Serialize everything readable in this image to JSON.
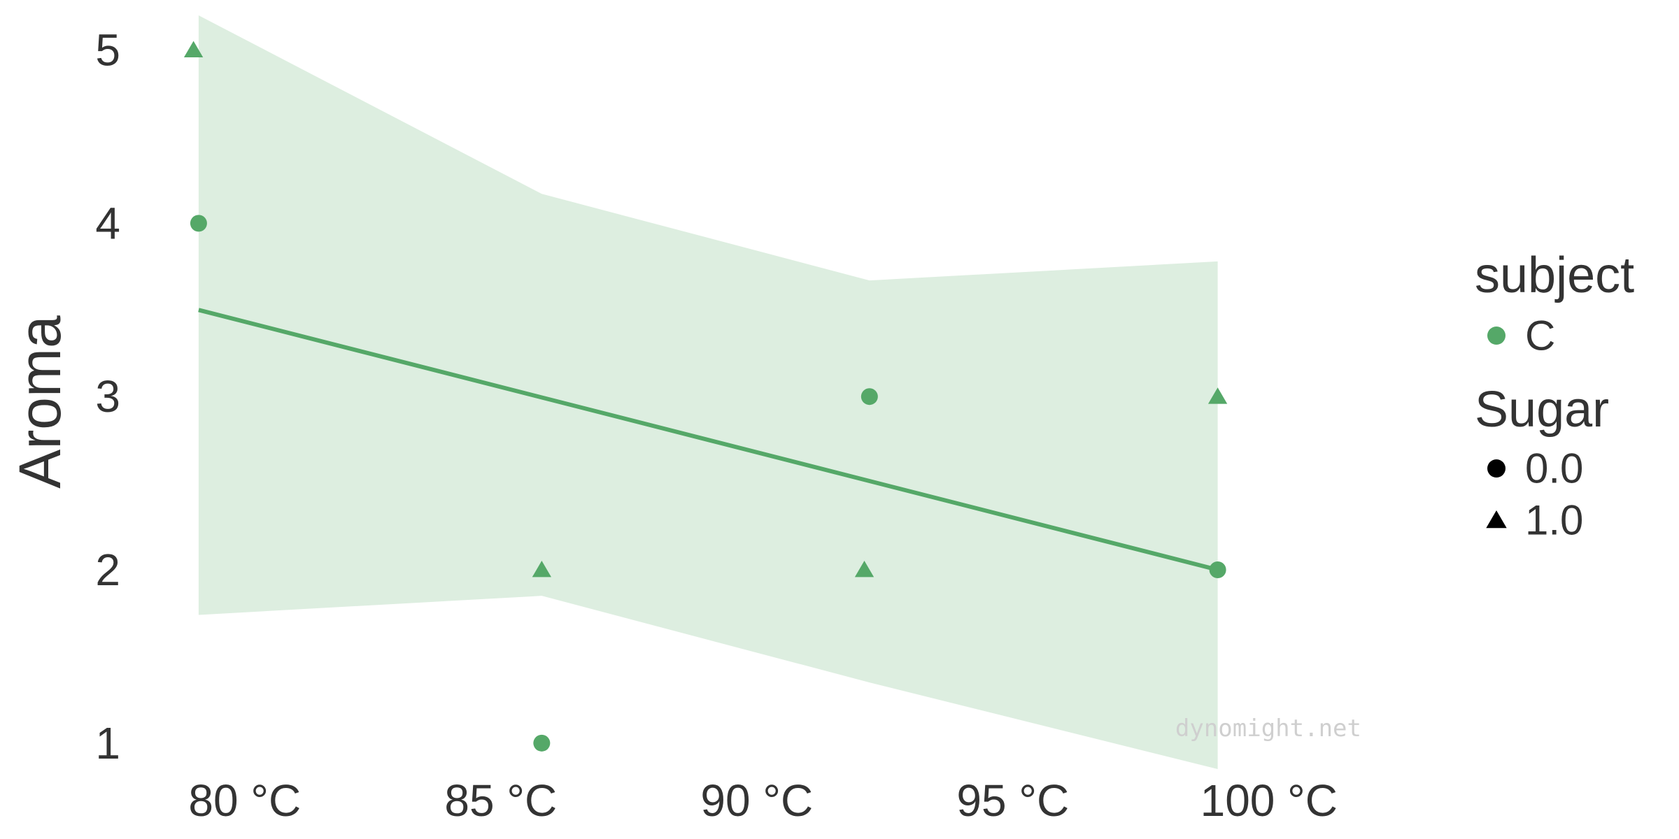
{
  "chart_data": {
    "type": "scatter",
    "title": "",
    "xlabel": "",
    "ylabel": "Aroma",
    "x_ticks": [
      {
        "value": 80,
        "label": "80 °C"
      },
      {
        "value": 85,
        "label": "85 °C"
      },
      {
        "value": 90,
        "label": "90 °C"
      },
      {
        "value": 95,
        "label": "95 °C"
      },
      {
        "value": 100,
        "label": "100 °C"
      }
    ],
    "y_ticks": [
      {
        "value": 1,
        "label": "1"
      },
      {
        "value": 2,
        "label": "2"
      },
      {
        "value": 3,
        "label": "3"
      },
      {
        "value": 4,
        "label": "4"
      },
      {
        "value": 5,
        "label": "5"
      }
    ],
    "xlim": [
      78.5,
      103.5
    ],
    "ylim": [
      0.85,
      5.2
    ],
    "grid": false,
    "points": [
      {
        "x": 79.0,
        "y": 5,
        "subject": "C",
        "sugar": "1.0"
      },
      {
        "x": 79.1,
        "y": 4,
        "subject": "C",
        "sugar": "0.0"
      },
      {
        "x": 85.8,
        "y": 2,
        "subject": "C",
        "sugar": "1.0"
      },
      {
        "x": 85.8,
        "y": 1,
        "subject": "C",
        "sugar": "0.0"
      },
      {
        "x": 92.2,
        "y": 3,
        "subject": "C",
        "sugar": "0.0"
      },
      {
        "x": 92.1,
        "y": 2,
        "subject": "C",
        "sugar": "1.0"
      },
      {
        "x": 99.0,
        "y": 3,
        "subject": "C",
        "sugar": "1.0"
      },
      {
        "x": 99.0,
        "y": 2,
        "subject": "C",
        "sugar": "0.0"
      }
    ],
    "fit_line": {
      "x": [
        79.1,
        99.0
      ],
      "y": [
        3.5,
        2.0
      ]
    },
    "confidence_band": {
      "x": [
        79.1,
        85.8,
        92.2,
        99.0
      ],
      "upper": [
        5.2,
        4.17,
        3.67,
        3.78
      ],
      "lower": [
        1.74,
        1.85,
        1.35,
        0.85
      ]
    },
    "legend": {
      "placement": "right",
      "subject_title": "subject",
      "subject_items": [
        {
          "label": "C",
          "shape": "circle"
        }
      ],
      "sugar_title": "Sugar",
      "sugar_items": [
        {
          "label": "0.0",
          "shape": "circle"
        },
        {
          "label": "1.0",
          "shape": "triangle"
        }
      ]
    },
    "watermark": "dynomight.net",
    "colors": {
      "series": "#55a868",
      "band": "#ddeee0",
      "legend_marker": "#000000",
      "text": "#333333"
    }
  }
}
